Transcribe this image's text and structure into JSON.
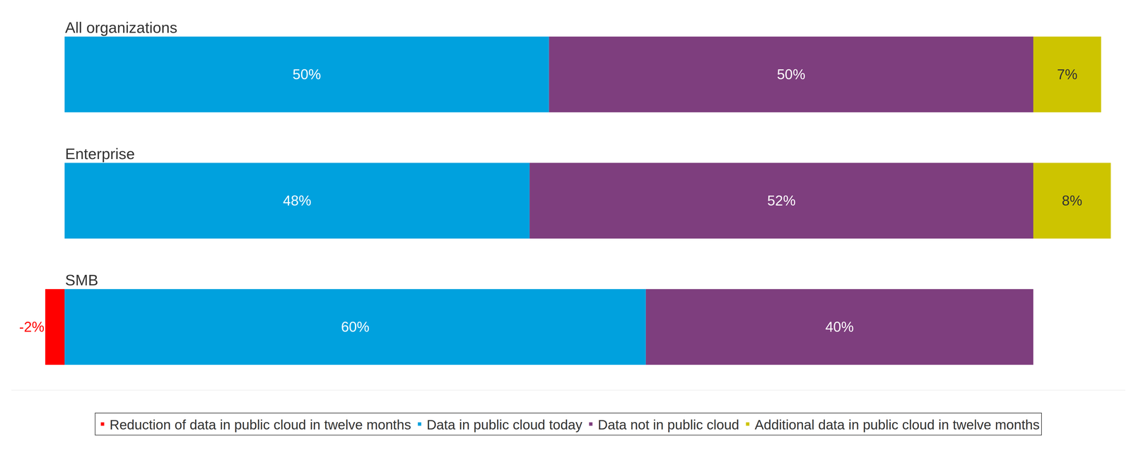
{
  "chart_data": {
    "type": "bar",
    "orientation": "horizontal",
    "stacked": true,
    "data_labels": true,
    "tick_labels": false,
    "legend": "bottom",
    "categories": [
      "All organizations",
      "Enterprise",
      "SMB"
    ],
    "xlim": [
      -5.5,
      109.5
    ],
    "series": [
      {
        "name": "Reduction of data in public cloud in twelve months",
        "color": "#ff0000",
        "values": [
          null,
          null,
          -2
        ],
        "value_labels": [
          null,
          null,
          "-2%"
        ]
      },
      {
        "name": "Data in public cloud today",
        "color": "#00a1de",
        "values": [
          50,
          48,
          60
        ],
        "value_labels": [
          "50%",
          "48%",
          "60%"
        ]
      },
      {
        "name": "Data not in public cloud",
        "color": "#7e3e7e",
        "values": [
          50,
          52,
          40
        ],
        "value_labels": [
          "50%",
          "52%",
          "40%"
        ]
      },
      {
        "name": "Additional data in public cloud in twelve months",
        "color": "#cdc400",
        "values": [
          7,
          8,
          null
        ],
        "value_labels": [
          "7%",
          "8%",
          null
        ]
      }
    ]
  }
}
